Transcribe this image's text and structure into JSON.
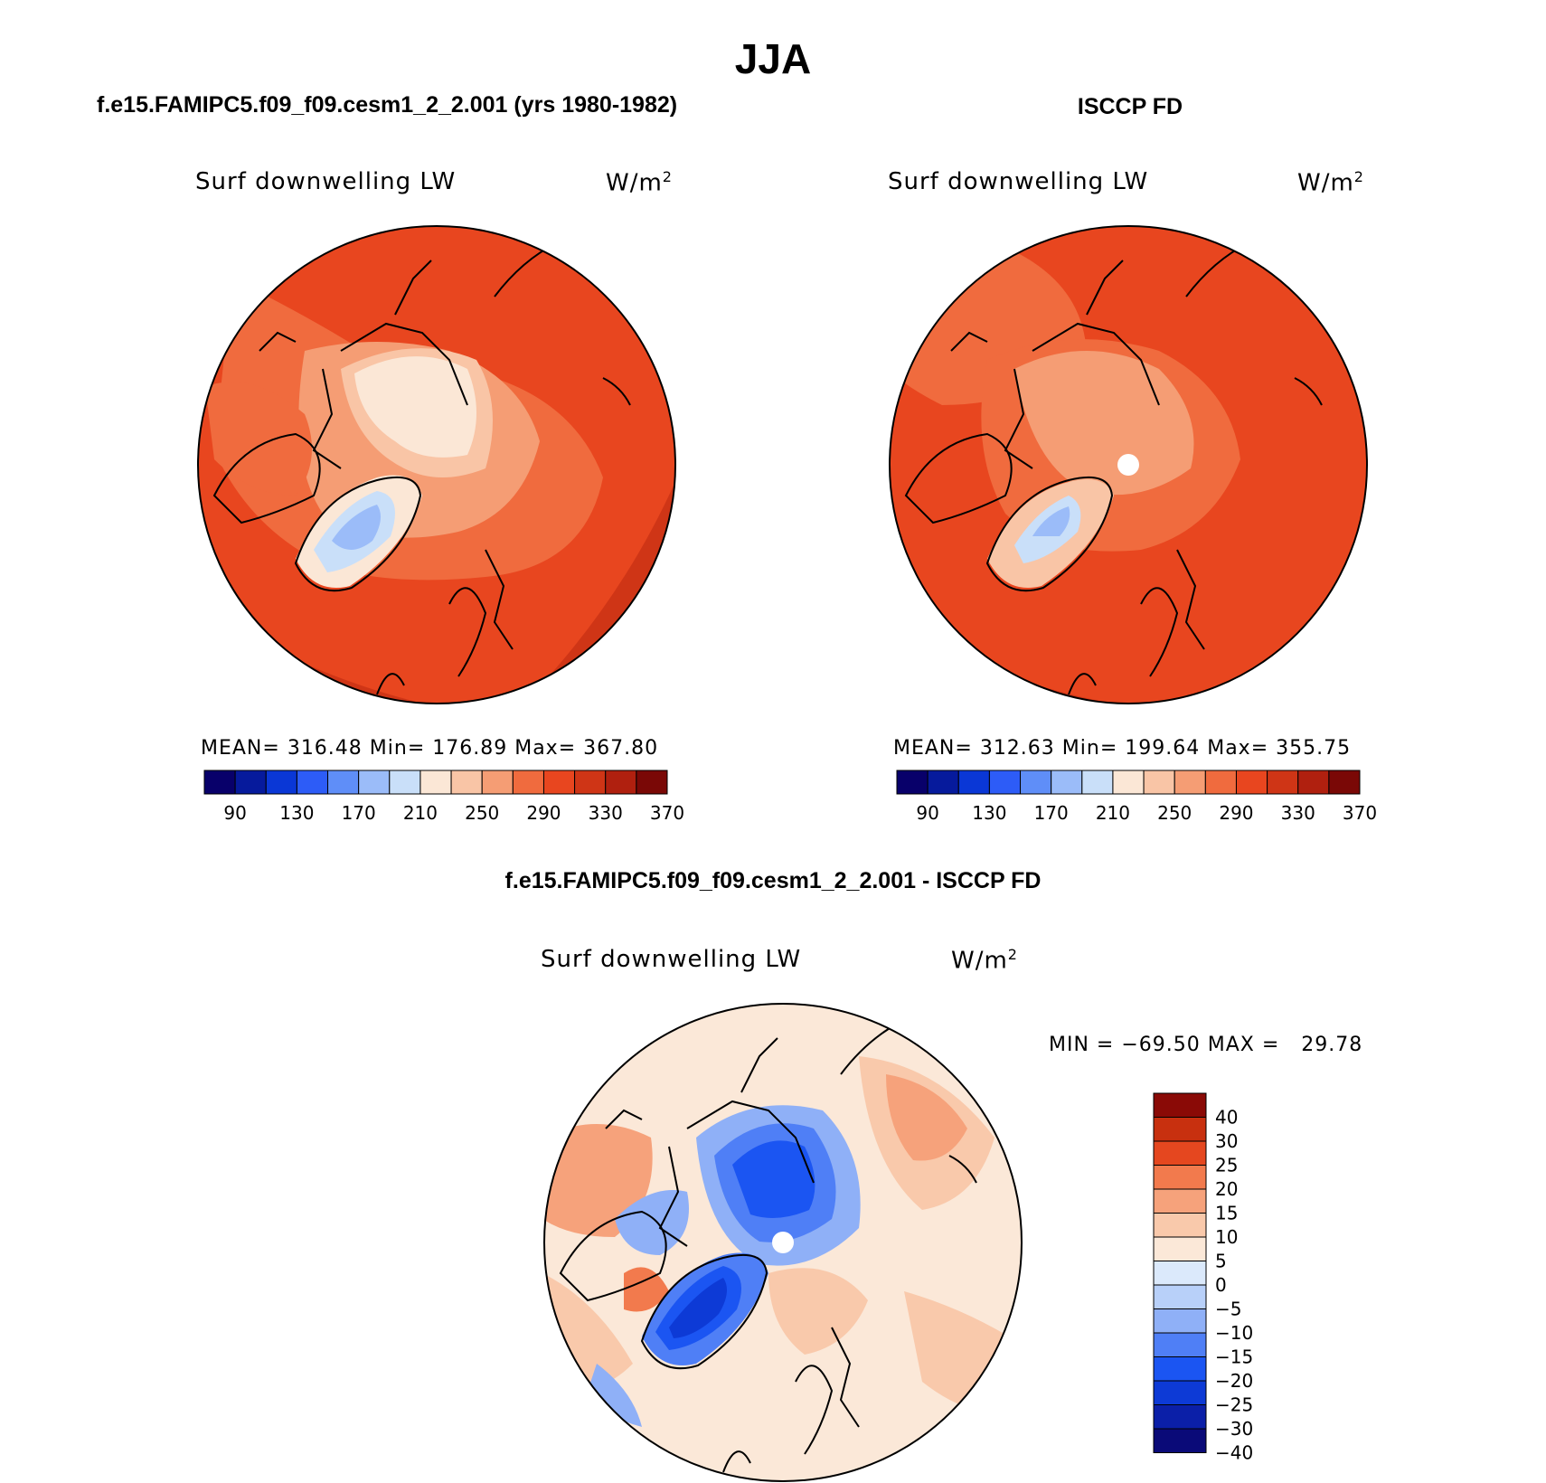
{
  "figure": {
    "title": "JJA",
    "panel_left_title": "f.e15.FAMIPC5.f09_f09.cesm1_2_2.001 (yrs 1980-1982)",
    "panel_right_title": "ISCCP FD",
    "panel_diff_title": "f.e15.FAMIPC5.f09_f09.cesm1_2_2.001 - ISCCP FD"
  },
  "colors": {
    "abs_scale": [
      "#08006a",
      "#061a9c",
      "#0a37d6",
      "#2d5cf7",
      "#5f8ef8",
      "#9bbcf9",
      "#c9dff9",
      "#fbe7d6",
      "#f9c5a6",
      "#f59d74",
      "#f06b3e",
      "#e8461f",
      "#cf3516",
      "#b0200f",
      "#7a0806"
    ],
    "diff_scale": [
      "#0a0a78",
      "#0b1fa8",
      "#0d3ad6",
      "#1b55f2",
      "#4f7ff6",
      "#8fb0f7",
      "#b8d0f9",
      "#dbe9fb",
      "#fbe8d8",
      "#f9c9ab",
      "#f6a27b",
      "#f27a4d",
      "#e5471f",
      "#c8300f",
      "#8a0a06"
    ],
    "land_contour": "#000000"
  },
  "panels": [
    {
      "id": "model",
      "variable": "Surf downwelling LW",
      "units_base": "W/m",
      "units_exp": "2",
      "stats": "MEAN= 316.48   Min= 176.89   Max= 367.80",
      "colorbar_labels": [
        "90",
        "130",
        "170",
        "210",
        "250",
        "290",
        "330",
        "370"
      ],
      "pole_hole": false
    },
    {
      "id": "obs",
      "variable": "Surf downwelling LW",
      "units_base": "W/m",
      "units_exp": "2",
      "stats": "MEAN= 312.63   Min= 199.64   Max= 355.75",
      "colorbar_labels": [
        "90",
        "130",
        "170",
        "210",
        "250",
        "290",
        "330",
        "370"
      ],
      "pole_hole": true
    },
    {
      "id": "diff",
      "variable": "Surf downwelling LW",
      "units_base": "W/m",
      "units_exp": "2",
      "stats": "MIN = −69.50 MAX =   29.78",
      "colorbar_labels": [
        "40",
        "30",
        "25",
        "20",
        "15",
        "10",
        "5",
        "0",
        "−5",
        "−10",
        "−15",
        "−20",
        "−25",
        "−30",
        "−40"
      ],
      "pole_hole": true
    }
  ]
}
